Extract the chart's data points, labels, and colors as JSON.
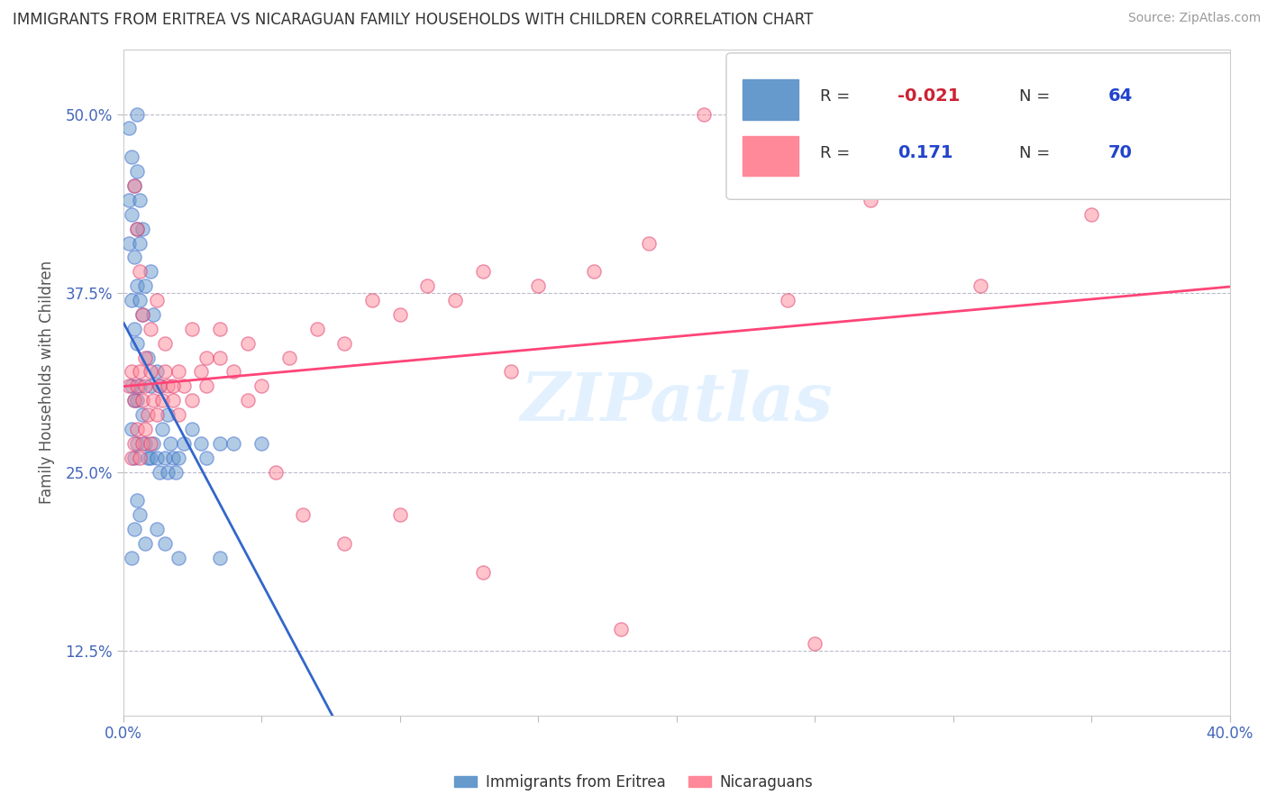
{
  "title": "IMMIGRANTS FROM ERITREA VS NICARAGUAN FAMILY HOUSEHOLDS WITH CHILDREN CORRELATION CHART",
  "source": "Source: ZipAtlas.com",
  "xlabel_label": "Immigrants from Eritrea",
  "ylabel_label": "Family Households with Children",
  "xlabel_right": "Nicaraguans",
  "xlim": [
    0.0,
    0.4
  ],
  "ylim": [
    0.08,
    0.545
  ],
  "xticks": [
    0.0,
    0.05,
    0.1,
    0.15,
    0.2,
    0.25,
    0.3,
    0.35,
    0.4
  ],
  "yticks": [
    0.125,
    0.25,
    0.375,
    0.5
  ],
  "ytick_labels": [
    "12.5%",
    "25.0%",
    "37.5%",
    "50.0%"
  ],
  "xtick_labels": [
    "0.0%",
    "",
    "",
    "",
    "",
    "",
    "",
    "",
    "40.0%"
  ],
  "color_blue": "#6699CC",
  "color_pink": "#FF8899",
  "color_blue_line": "#3366CC",
  "color_pink_line": "#FF4477",
  "R_blue": -0.021,
  "N_blue": 64,
  "R_pink": 0.171,
  "N_pink": 70,
  "watermark": "ZIPatlas",
  "blue_scatter_x": [
    0.002,
    0.002,
    0.002,
    0.003,
    0.003,
    0.003,
    0.003,
    0.003,
    0.004,
    0.004,
    0.004,
    0.004,
    0.004,
    0.005,
    0.005,
    0.005,
    0.005,
    0.005,
    0.005,
    0.005,
    0.006,
    0.006,
    0.006,
    0.006,
    0.007,
    0.007,
    0.007,
    0.008,
    0.008,
    0.009,
    0.009,
    0.01,
    0.01,
    0.01,
    0.011,
    0.011,
    0.012,
    0.012,
    0.013,
    0.013,
    0.014,
    0.015,
    0.016,
    0.016,
    0.017,
    0.018,
    0.019,
    0.02,
    0.022,
    0.025,
    0.028,
    0.03,
    0.035,
    0.04,
    0.05,
    0.003,
    0.004,
    0.005,
    0.006,
    0.008,
    0.02,
    0.035,
    0.012,
    0.015
  ],
  "blue_scatter_y": [
    0.49,
    0.44,
    0.41,
    0.47,
    0.43,
    0.37,
    0.31,
    0.28,
    0.45,
    0.4,
    0.35,
    0.3,
    0.26,
    0.5,
    0.46,
    0.42,
    0.38,
    0.34,
    0.3,
    0.27,
    0.44,
    0.41,
    0.37,
    0.31,
    0.42,
    0.36,
    0.29,
    0.38,
    0.27,
    0.33,
    0.26,
    0.39,
    0.31,
    0.26,
    0.36,
    0.27,
    0.32,
    0.26,
    0.31,
    0.25,
    0.28,
    0.26,
    0.29,
    0.25,
    0.27,
    0.26,
    0.25,
    0.26,
    0.27,
    0.28,
    0.27,
    0.26,
    0.27,
    0.27,
    0.27,
    0.19,
    0.21,
    0.23,
    0.22,
    0.2,
    0.19,
    0.19,
    0.21,
    0.2
  ],
  "pink_scatter_x": [
    0.002,
    0.003,
    0.003,
    0.004,
    0.004,
    0.005,
    0.005,
    0.006,
    0.006,
    0.007,
    0.007,
    0.008,
    0.008,
    0.009,
    0.01,
    0.01,
    0.011,
    0.012,
    0.013,
    0.014,
    0.015,
    0.016,
    0.018,
    0.02,
    0.022,
    0.025,
    0.028,
    0.03,
    0.035,
    0.04,
    0.045,
    0.05,
    0.06,
    0.07,
    0.08,
    0.09,
    0.1,
    0.11,
    0.12,
    0.13,
    0.14,
    0.15,
    0.17,
    0.19,
    0.21,
    0.24,
    0.27,
    0.31,
    0.35,
    0.004,
    0.005,
    0.006,
    0.007,
    0.008,
    0.01,
    0.012,
    0.015,
    0.018,
    0.02,
    0.025,
    0.03,
    0.035,
    0.045,
    0.055,
    0.065,
    0.08,
    0.1,
    0.13,
    0.18,
    0.25
  ],
  "pink_scatter_y": [
    0.31,
    0.32,
    0.26,
    0.3,
    0.27,
    0.31,
    0.28,
    0.32,
    0.26,
    0.3,
    0.27,
    0.31,
    0.28,
    0.29,
    0.32,
    0.27,
    0.3,
    0.29,
    0.31,
    0.3,
    0.32,
    0.31,
    0.3,
    0.29,
    0.31,
    0.3,
    0.32,
    0.31,
    0.33,
    0.32,
    0.34,
    0.31,
    0.33,
    0.35,
    0.34,
    0.37,
    0.36,
    0.38,
    0.37,
    0.39,
    0.32,
    0.38,
    0.39,
    0.41,
    0.5,
    0.37,
    0.44,
    0.38,
    0.43,
    0.45,
    0.42,
    0.39,
    0.36,
    0.33,
    0.35,
    0.37,
    0.34,
    0.31,
    0.32,
    0.35,
    0.33,
    0.35,
    0.3,
    0.25,
    0.22,
    0.2,
    0.22,
    0.18,
    0.14,
    0.13
  ]
}
